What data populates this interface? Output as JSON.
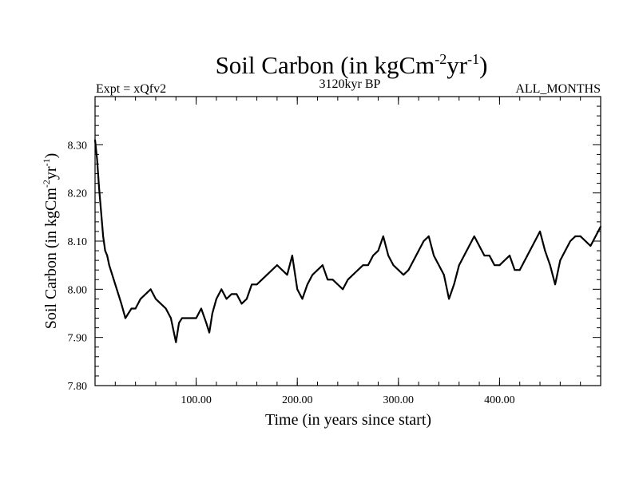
{
  "chart_data": {
    "type": "line",
    "title": {
      "main": "Soil Carbon (in kgCm",
      "sup1": "-2",
      "mid": "yr",
      "sup2": "-1",
      "end": ")"
    },
    "expt_label": "Expt = xQfv2",
    "period_label": "3120kyr BP",
    "months_label": "ALL_MONTHS",
    "xlabel": "Time (in years since start)",
    "ylabel": {
      "main": "Soil Carbon (in kgCm",
      "sup1": "-2",
      "mid": "yr",
      "sup2": "-1",
      "end": ")"
    },
    "xlim": [
      0,
      500
    ],
    "ylim": [
      7.8,
      8.4
    ],
    "x_ticks": [
      100,
      200,
      300,
      400
    ],
    "x_tick_labels": [
      "100.00",
      "200.00",
      "300.00",
      "400.00"
    ],
    "y_ticks": [
      7.8,
      7.9,
      8.0,
      8.1,
      8.2,
      8.3
    ],
    "y_tick_labels": [
      "7.80",
      "7.90",
      "8.00",
      "8.10",
      "8.20",
      "8.30"
    ],
    "series": [
      {
        "name": "Soil Carbon",
        "color": "#000000",
        "x": [
          0,
          2,
          4,
          6,
          8,
          10,
          12,
          14,
          17,
          20,
          23,
          26,
          30,
          33,
          36,
          40,
          45,
          50,
          55,
          60,
          65,
          70,
          75,
          78,
          80,
          83,
          86,
          90,
          95,
          100,
          105,
          110,
          113,
          116,
          120,
          125,
          130,
          135,
          140,
          145,
          150,
          155,
          160,
          165,
          170,
          175,
          180,
          185,
          190,
          195,
          200,
          205,
          210,
          215,
          220,
          225,
          230,
          235,
          240,
          245,
          250,
          255,
          260,
          265,
          270,
          275,
          280,
          285,
          290,
          295,
          300,
          305,
          310,
          315,
          320,
          325,
          330,
          335,
          340,
          345,
          350,
          355,
          360,
          365,
          370,
          375,
          380,
          385,
          390,
          395,
          400,
          405,
          410,
          415,
          420,
          425,
          430,
          435,
          440,
          445,
          450,
          455,
          460,
          465,
          470,
          475,
          480,
          485,
          490,
          495,
          500
        ],
        "values": [
          8.31,
          8.27,
          8.21,
          8.16,
          8.11,
          8.08,
          8.07,
          8.05,
          8.03,
          8.01,
          7.99,
          7.97,
          7.94,
          7.95,
          7.96,
          7.96,
          7.98,
          7.99,
          8.0,
          7.98,
          7.97,
          7.96,
          7.94,
          7.91,
          7.89,
          7.93,
          7.94,
          7.94,
          7.94,
          7.94,
          7.96,
          7.93,
          7.91,
          7.95,
          7.98,
          8.0,
          7.98,
          7.99,
          7.99,
          7.97,
          7.98,
          8.01,
          8.01,
          8.02,
          8.03,
          8.04,
          8.05,
          8.04,
          8.03,
          8.07,
          8.0,
          7.98,
          8.01,
          8.03,
          8.04,
          8.05,
          8.02,
          8.02,
          8.01,
          8.0,
          8.02,
          8.03,
          8.04,
          8.05,
          8.05,
          8.07,
          8.08,
          8.11,
          8.07,
          8.05,
          8.04,
          8.03,
          8.04,
          8.06,
          8.08,
          8.1,
          8.11,
          8.07,
          8.05,
          8.03,
          7.98,
          8.01,
          8.05,
          8.07,
          8.09,
          8.11,
          8.09,
          8.07,
          8.07,
          8.05,
          8.05,
          8.06,
          8.07,
          8.04,
          8.04,
          8.06,
          8.08,
          8.1,
          8.12,
          8.08,
          8.05,
          8.01,
          8.06,
          8.08,
          8.1,
          8.11,
          8.11,
          8.1,
          8.09,
          8.11,
          8.13
        ]
      }
    ]
  }
}
